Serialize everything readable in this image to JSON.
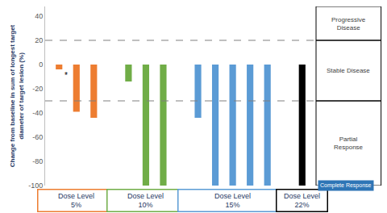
{
  "chart_data": {
    "type": "bar",
    "y_label": "Change from baseline in sum of longest target\ndiameter of target lesion (%)",
    "categories": [
      null,
      null,
      null,
      null,
      null,
      null,
      null,
      null,
      null,
      null,
      null,
      null,
      null,
      null,
      null
    ],
    "series": [
      {
        "name": "Dose Level\n5%",
        "color": "#ED7D31",
        "values": [
          -4,
          -39,
          -44,
          null,
          null,
          null,
          null,
          null,
          null,
          null,
          null,
          null,
          null,
          null,
          null
        ]
      },
      {
        "name": "Dose Level\n10%",
        "color": "#70AD47",
        "values": [
          null,
          null,
          null,
          null,
          -14,
          -100,
          -100,
          null,
          null,
          null,
          null,
          null,
          null,
          null,
          null
        ]
      },
      {
        "name": "Dose Level\n15%",
        "color": "#5B9BD5",
        "values": [
          null,
          null,
          null,
          null,
          null,
          null,
          null,
          null,
          -44,
          -100,
          -100,
          -100,
          -100,
          null,
          null
        ]
      },
      {
        "name": "Dose Level\n22%",
        "color": "#000000",
        "values": [
          null,
          null,
          null,
          null,
          null,
          null,
          null,
          null,
          null,
          null,
          null,
          null,
          null,
          null,
          -100
        ]
      }
    ],
    "ylim": [
      -100,
      48
    ],
    "yticks": [
      -100,
      -80,
      -60,
      -40,
      -20,
      0,
      20,
      40
    ],
    "grid": false,
    "tick_labels": "y",
    "reference_lines": [
      20,
      -30
    ],
    "zones": [
      {
        "label": "Progressive\nDisease",
        "from": 20,
        "to": 48
      },
      {
        "label": "Stable Disease",
        "from": -30,
        "to": 20
      },
      {
        "label": "Partial\nResponse",
        "from": -100,
        "to": -30
      }
    ],
    "callout": {
      "text": "Complete Response",
      "value": -100
    },
    "annotations": [
      {
        "text": "*",
        "x": 0,
        "y": -4
      }
    ]
  }
}
